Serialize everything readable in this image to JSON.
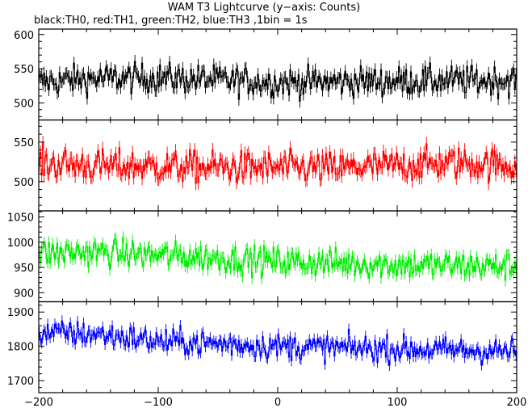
{
  "chart_data": {
    "type": "line",
    "title": "WAM T3 Lightcurve (y−axis: Counts)",
    "subtitle": "black:TH0, red:TH1, green:TH2, blue:TH3 ,1bin = 1s",
    "x_range": [
      -200,
      200
    ],
    "x_ticks": [
      -200,
      -100,
      0,
      100,
      200
    ],
    "x_tick_labels": [
      "−200",
      "−100",
      "0",
      "100",
      "200"
    ],
    "panels": [
      {
        "series_label": "TH0",
        "color": "#000000",
        "ylim": [
          475,
          608
        ],
        "y_ticks": [
          500,
          550,
          600
        ],
        "mean": 533,
        "noise": 20,
        "trend": [
          [
            -200,
            530
          ],
          [
            -160,
            535
          ],
          [
            -100,
            537
          ],
          [
            0,
            530
          ],
          [
            100,
            532
          ],
          [
            200,
            533
          ]
        ]
      },
      {
        "series_label": "TH1",
        "color": "#ff0000",
        "ylim": [
          463,
          578
        ],
        "y_ticks": [
          500,
          550
        ],
        "mean": 521,
        "noise": 19,
        "trend": [
          [
            -200,
            523
          ],
          [
            -150,
            520
          ],
          [
            -50,
            518
          ],
          [
            50,
            517
          ],
          [
            150,
            524
          ],
          [
            200,
            520
          ]
        ]
      },
      {
        "series_label": "TH2",
        "color": "#00ee00",
        "ylim": [
          882,
          1062
        ],
        "y_ticks": [
          900,
          950,
          1000,
          1050
        ],
        "mean": 965,
        "noise": 26,
        "trend": [
          [
            -200,
            978
          ],
          [
            -150,
            980
          ],
          [
            -50,
            968
          ],
          [
            0,
            962
          ],
          [
            100,
            955
          ],
          [
            200,
            952
          ]
        ]
      },
      {
        "series_label": "TH3",
        "color": "#0000ff",
        "ylim": [
          1665,
          1930
        ],
        "y_ticks": [
          1700,
          1800,
          1900
        ],
        "mean": 1800,
        "noise": 35,
        "trend": [
          [
            -200,
            1840
          ],
          [
            -150,
            1835
          ],
          [
            -100,
            1815
          ],
          [
            0,
            1800
          ],
          [
            100,
            1792
          ],
          [
            200,
            1785
          ]
        ]
      }
    ],
    "bin_seconds": 1
  }
}
